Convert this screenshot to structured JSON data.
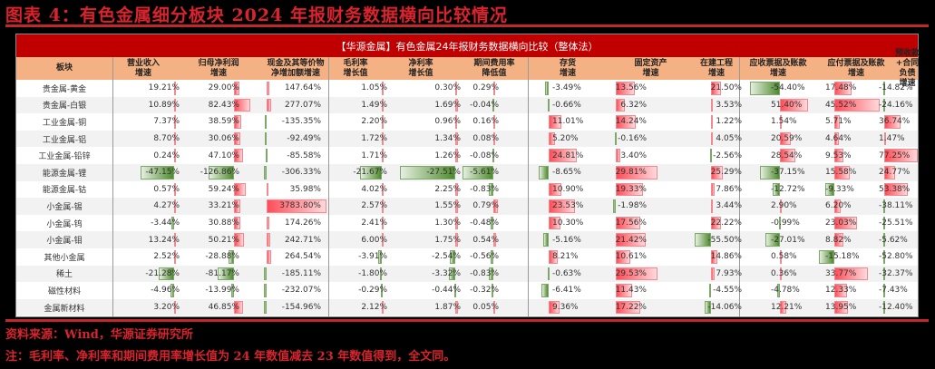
{
  "title": "图表 4：有色金属细分板块 2024 年报财务数据横向比较情况",
  "table": {
    "banner": "【华源金属】有色金属24年报财务数据横向比较（整体法）",
    "headers": [
      {
        "line1": "板块",
        "line2": ""
      },
      {
        "line1": "营业收入",
        "line2": "增速"
      },
      {
        "line1": "归母净利润",
        "line2": "增速"
      },
      {
        "line1": "现金及其等价物",
        "line2": "净增加额增速"
      },
      {
        "line1": "毛利率",
        "line2": "增长值"
      },
      {
        "line1": "净利率",
        "line2": "增长值"
      },
      {
        "line1": "期间费用率",
        "line2": "降低值"
      },
      {
        "line1": "存货",
        "line2": "增速"
      },
      {
        "line1": "固定资产",
        "line2": "增速"
      },
      {
        "line1": "在建工程",
        "line2": "增速"
      },
      {
        "line1": "应收票据及账款",
        "line2": "增速"
      },
      {
        "line1": "应付票据及账款",
        "line2": "增速"
      },
      {
        "line1": "预收款+合同负债",
        "line2": "增速"
      }
    ],
    "rows": [
      {
        "name": "贵金属-黄金",
        "values": [
          "19.21%",
          "29.00%",
          "147.64%",
          "1.05%",
          "0.30%",
          "0.29%",
          "-3.49%",
          "13.56%",
          "21.50%",
          "-54.40%",
          "17.48%",
          "-14.82%"
        ]
      },
      {
        "name": "贵金属-白银",
        "values": [
          "10.89%",
          "82.43%",
          "277.07%",
          "1.49%",
          "1.69%",
          "-0.04%",
          "-0.66%",
          "6.32%",
          "3.53%",
          "51.40%",
          "45.52%",
          "-24.16%"
        ]
      },
      {
        "name": "工业金属-铜",
        "values": [
          "7.37%",
          "38.59%",
          "-135.35%",
          "2.20%",
          "0.96%",
          "0.16%",
          "11.01%",
          "14.24%",
          "1.22%",
          "1.54%",
          "5.71%",
          "36.74%"
        ]
      },
      {
        "name": "工业金属-铝",
        "values": [
          "8.70%",
          "30.06%",
          "-92.49%",
          "1.72%",
          "1.34%",
          "0.08%",
          "5.20%",
          "-0.16%",
          "4.05%",
          "20.59%",
          "4.64%",
          "1.47%"
        ]
      },
      {
        "name": "工业金属-铅锌",
        "values": [
          "0.24%",
          "47.10%",
          "-85.58%",
          "1.71%",
          "1.26%",
          "-0.08%",
          "24.81%",
          "3.40%",
          "-2.56%",
          "28.54%",
          "9.53%",
          "77.25%"
        ]
      },
      {
        "name": "能源金属-锂",
        "values": [
          "-47.15%",
          "-126.86%",
          "-306.33%",
          "-21.67%",
          "-27.51%",
          "-5.61%",
          "-8.65%",
          "29.81%",
          "25.29%",
          "-37.15%",
          "15.58%",
          "24.77%"
        ]
      },
      {
        "name": "能源金属-钴",
        "values": [
          "0.57%",
          "59.24%",
          "35.98%",
          "4.02%",
          "2.25%",
          "-0.83%",
          "10.90%",
          "19.33%",
          "7.86%",
          "-12.72%",
          "-9.33%",
          "53.38%"
        ]
      },
      {
        "name": "小金属-锡",
        "values": [
          "4.27%",
          "33.21%",
          "3783.80%",
          "2.57%",
          "1.55%",
          "0.79%",
          "23.53%",
          "-1.98%",
          "3.44%",
          "2.90%",
          "6.20%",
          "-38.11%"
        ]
      },
      {
        "name": "小金属-钨",
        "values": [
          "-3.44%",
          "30.88%",
          "174.26%",
          "2.41%",
          "1.30%",
          "-0.48%",
          "10.30%",
          "17.56%",
          "22.22%",
          "-0.99%",
          "23.03%",
          "-25.51%"
        ]
      },
      {
        "name": "小金属-钼",
        "values": [
          "13.24%",
          "50.21%",
          "242.71%",
          "6.00%",
          "1.75%",
          "0.54%",
          "-5.16%",
          "21.42%",
          "-55.50%",
          "-27.01%",
          "8.82%",
          "-5.62%"
        ]
      },
      {
        "name": "其他小金属",
        "values": [
          "2.52%",
          "-28.88%",
          "264.54%",
          "-3.91%",
          "-2.54%",
          "-0.56%",
          "8.21%",
          "10.61%",
          "14.86%",
          "0.58%",
          "-15.18%",
          "-52.80%"
        ]
      },
      {
        "name": "稀土",
        "values": [
          "-21.28%",
          "-81.17%",
          "-185.11%",
          "-1.80%",
          "-3.32%",
          "-0.83%",
          "-0.63%",
          "29.53%",
          "7.93%",
          "0.36%",
          "33.77%",
          "-32.37%"
        ]
      },
      {
        "name": "磁性材料",
        "values": [
          "-4.96%",
          "-13.99%",
          "-232.07%",
          "-0.29%",
          "-0.44%",
          "-0.32%",
          "-6.41%",
          "11.43%",
          "-4.55%",
          "-4.78%",
          "12.33%",
          "-7.43%"
        ]
      },
      {
        "name": "金属新材料",
        "values": [
          "3.20%",
          "46.85%",
          "-154.96%",
          "2.12%",
          "1.87%",
          "0.05%",
          "9.36%",
          "17.22%",
          "-14.06%",
          "12.21%",
          "13.95%",
          "-12.40%"
        ]
      }
    ]
  },
  "source": "资料来源：Wind，华源证券研究所",
  "note": "注：毛利率、净利率和期间费用率增长值为 24 年数值减去 23 年数值得到，全文同。",
  "colors": {
    "title_red": "#d9232e",
    "banner_red": "#c00000",
    "header_orange": "#f4b183",
    "bar_positive": "#ff4d58",
    "bar_negative": "#4f8a2e"
  }
}
